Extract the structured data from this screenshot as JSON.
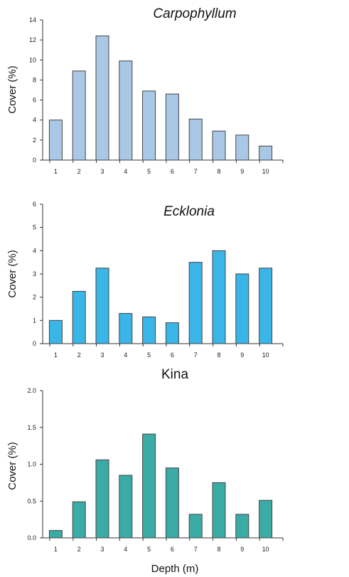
{
  "chart_data": [
    {
      "type": "bar",
      "title": "Carpophyllum",
      "title_style": "italic",
      "ylabel": "Cover (%)",
      "xlabel": "",
      "ylim": [
        0,
        14
      ],
      "yticks": [
        "0",
        "2",
        "4",
        "6",
        "8",
        "10",
        "12",
        "14"
      ],
      "categories": [
        "1",
        "2",
        "3",
        "4",
        "5",
        "6",
        "7",
        "8",
        "9",
        "10"
      ],
      "values": [
        4.0,
        8.9,
        12.4,
        9.9,
        6.9,
        6.6,
        4.1,
        2.9,
        2.5,
        1.4
      ],
      "bar_color": "#a9c8e6"
    },
    {
      "type": "bar",
      "title": "Ecklonia",
      "title_style": "italic",
      "ylabel": "Cover (%)",
      "xlabel": "",
      "ylim": [
        0,
        6
      ],
      "yticks": [
        "0",
        "1",
        "2",
        "3",
        "4",
        "5",
        "6"
      ],
      "categories": [
        "1",
        "2",
        "3",
        "4",
        "5",
        "6",
        "7",
        "8",
        "9",
        "10"
      ],
      "values": [
        1.0,
        2.25,
        3.25,
        1.3,
        1.15,
        0.9,
        3.5,
        4.0,
        3.0,
        3.25
      ],
      "bar_color": "#3ab5e8"
    },
    {
      "type": "bar",
      "title": "Kina",
      "title_style": "normal",
      "ylabel": "Cover (%)",
      "xlabel": "Depth (m)",
      "ylim": [
        0,
        2.0
      ],
      "yticks": [
        "0.0",
        "0.5",
        "1.0",
        "1.5",
        "2.0"
      ],
      "categories": [
        "1",
        "2",
        "3",
        "4",
        "5",
        "6",
        "7",
        "8",
        "9",
        "10"
      ],
      "values": [
        0.1,
        0.49,
        1.06,
        0.85,
        1.41,
        0.95,
        0.32,
        0.75,
        0.32,
        0.51
      ],
      "bar_color": "#3aaba5"
    }
  ]
}
